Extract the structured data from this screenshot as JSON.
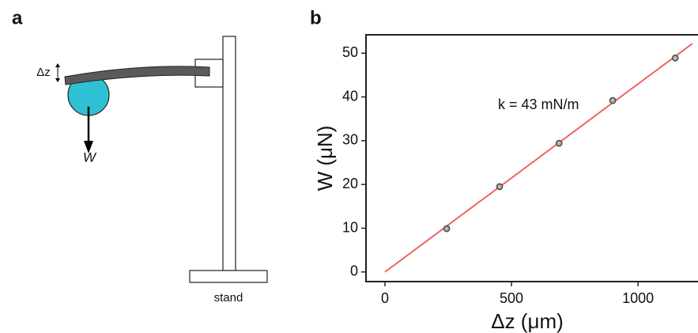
{
  "diagram": {
    "panel_label": "a",
    "dz_label": "Δz",
    "weight_label": "W",
    "stand_label": "stand"
  },
  "chart_data": {
    "type": "scatter",
    "panel_label": "b",
    "x_label": "Δz (μm)",
    "y_label": "W (μN)",
    "x": [
      244,
      453,
      688,
      900,
      1147
    ],
    "values": [
      9.9,
      19.5,
      29.4,
      39.2,
      48.9
    ],
    "color": "#555555",
    "fit_line": {
      "x": [
        0,
        1215
      ],
      "values": [
        0,
        52.2
      ],
      "color": "#f06464"
    },
    "annotation": {
      "text": "k = 43 mN/m",
      "color": "#d0306a"
    },
    "xlim": [
      -75,
      1237
    ],
    "ylim": [
      -2.2,
      54.2
    ],
    "xticks": [
      0,
      500,
      1000
    ],
    "yticks": [
      0,
      10,
      20,
      30,
      40,
      50
    ]
  }
}
